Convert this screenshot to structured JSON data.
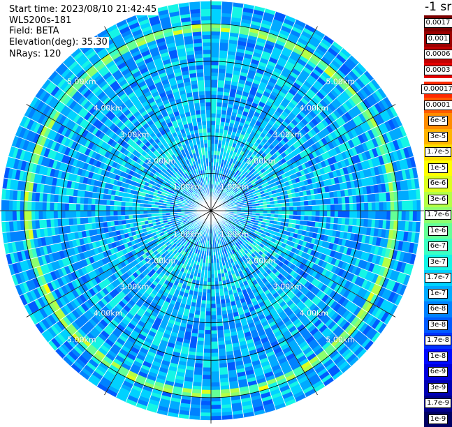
{
  "info": {
    "start_time": "Start time: 2023/08/10 21:42:45",
    "instrument": "WLS200s-181",
    "field": "Field: BETA",
    "elevation": "Elevation(deg): 35.30",
    "nrays": "NRays: 120"
  },
  "colorbar": {
    "unit": "-1 sr",
    "bins": [
      {
        "label": "0.0017",
        "color": "#7a0000"
      },
      {
        "label": "0.001",
        "color": "#9a0000"
      },
      {
        "label": "0.0006",
        "color": "#c00000"
      },
      {
        "label": "0.0003",
        "color": "#e60000"
      },
      {
        "label": "0.00017",
        "color": "#ff2a00"
      },
      {
        "label": "0.0001",
        "color": "#ff5a00"
      },
      {
        "label": "6e-5",
        "color": "#ff8c00"
      },
      {
        "label": "3e-5",
        "color": "#ffb400"
      },
      {
        "label": "1.7e-5",
        "color": "#ffdc00"
      },
      {
        "label": "1e-5",
        "color": "#ffff00"
      },
      {
        "label": "6e-6",
        "color": "#dcff1e"
      },
      {
        "label": "3e-6",
        "color": "#b4ff46"
      },
      {
        "label": "1.7e-6",
        "color": "#8cff6e"
      },
      {
        "label": "1e-6",
        "color": "#64ff96"
      },
      {
        "label": "6e-7",
        "color": "#3cffc3"
      },
      {
        "label": "3e-7",
        "color": "#14f5e6"
      },
      {
        "label": "1.7e-7",
        "color": "#00d2ff"
      },
      {
        "label": "1e-7",
        "color": "#00aaff"
      },
      {
        "label": "6e-8",
        "color": "#0082ff"
      },
      {
        "label": "3e-8",
        "color": "#005aff"
      },
      {
        "label": "1.7e-8",
        "color": "#0032ff"
      },
      {
        "label": "1e-8",
        "color": "#000aff"
      },
      {
        "label": "6e-9",
        "color": "#0000dc"
      },
      {
        "label": "3e-9",
        "color": "#0000b4"
      },
      {
        "label": "1.7e-9",
        "color": "#00008c"
      },
      {
        "label": "1e-9",
        "color": "#000064"
      }
    ]
  },
  "plot": {
    "nrays": 120,
    "max_range_km": 5.6,
    "range_rings_km": [
      1,
      2,
      3,
      4,
      5
    ],
    "spoke_step_deg": 30,
    "range_labels": [
      "1.00km",
      "2.00km",
      "3.00km",
      "4.00km",
      "5.00km"
    ]
  }
}
